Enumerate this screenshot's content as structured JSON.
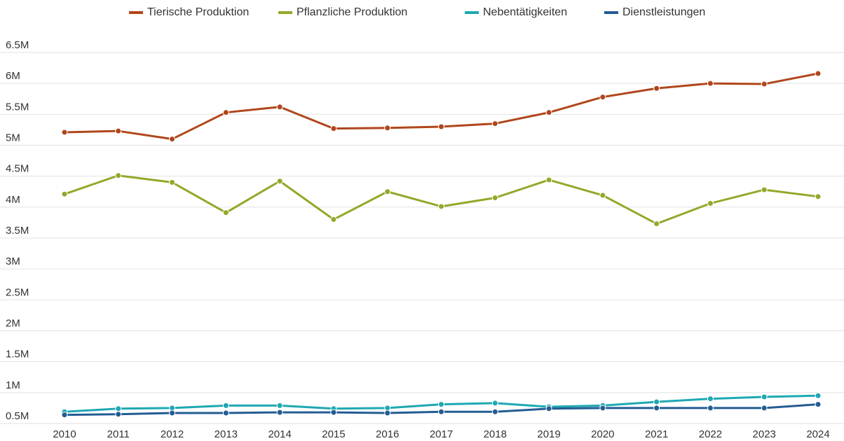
{
  "chart_data": {
    "type": "line",
    "categories": [
      "2010",
      "2011",
      "2012",
      "2013",
      "2014",
      "2015",
      "2016",
      "2017",
      "2018",
      "2019",
      "2020",
      "2021",
      "2022",
      "2023",
      "2024"
    ],
    "series": [
      {
        "name": "Tierische Produktion",
        "color": "#b0461c",
        "values": [
          5210000,
          5230000,
          5100000,
          5530000,
          5620000,
          5270000,
          5280000,
          5300000,
          5350000,
          5530000,
          5780000,
          5920000,
          6000000,
          5990000,
          6160000
        ]
      },
      {
        "name": "Pflanzliche Produktion",
        "color": "#94a82a",
        "values": [
          4210000,
          4510000,
          4400000,
          3910000,
          4420000,
          3800000,
          4250000,
          4010000,
          4150000,
          4440000,
          4190000,
          3730000,
          4060000,
          4280000,
          4170000
        ]
      },
      {
        "name": "Nebentätigkeiten",
        "color": "#1ea8b2",
        "values": [
          690000,
          740000,
          750000,
          790000,
          790000,
          740000,
          750000,
          810000,
          830000,
          770000,
          790000,
          850000,
          900000,
          930000,
          950000
        ]
      },
      {
        "name": "Dienstleistungen",
        "color": "#235c92",
        "values": [
          640000,
          650000,
          670000,
          670000,
          680000,
          680000,
          670000,
          690000,
          690000,
          740000,
          750000,
          750000,
          750000,
          750000,
          810000
        ]
      }
    ],
    "ylim": [
      500000,
      6500000
    ],
    "yticks": [
      {
        "value": 500000,
        "label": "0.5M"
      },
      {
        "value": 1000000,
        "label": "1M"
      },
      {
        "value": 1500000,
        "label": "1.5M"
      },
      {
        "value": 2000000,
        "label": "2M"
      },
      {
        "value": 2500000,
        "label": "2.5M"
      },
      {
        "value": 3000000,
        "label": "3M"
      },
      {
        "value": 3500000,
        "label": "3.5M"
      },
      {
        "value": 4000000,
        "label": "4M"
      },
      {
        "value": 4500000,
        "label": "4.5M"
      },
      {
        "value": 5000000,
        "label": "5M"
      },
      {
        "value": 5500000,
        "label": "5.5M"
      },
      {
        "value": 6000000,
        "label": "6M"
      },
      {
        "value": 6500000,
        "label": "6.5M"
      }
    ],
    "grid": true,
    "legend": "top"
  }
}
